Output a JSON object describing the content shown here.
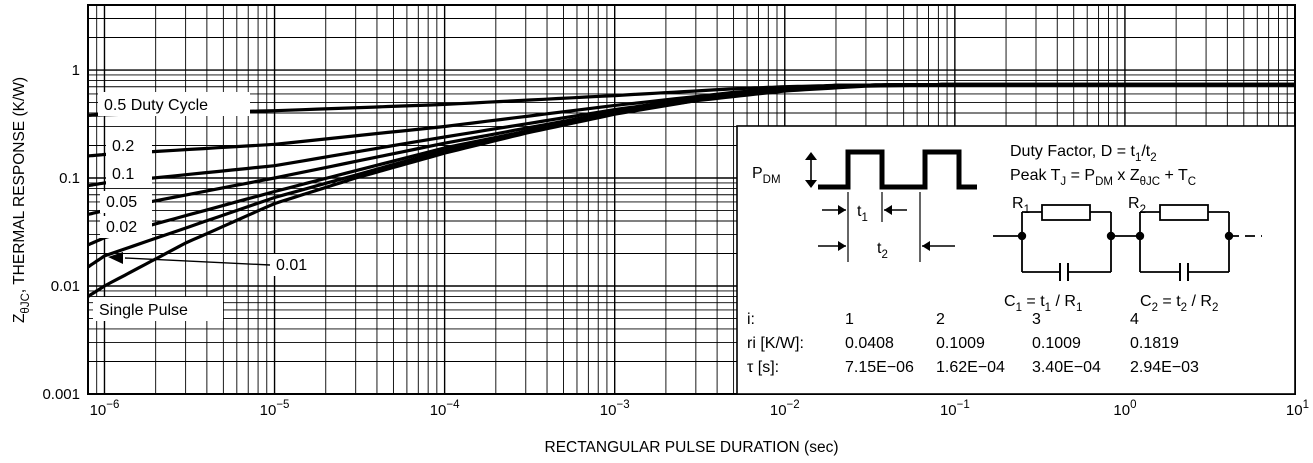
{
  "chart_data": {
    "type": "line",
    "title": "",
    "xlabel": "RECTANGULAR PULSE DURATION (sec)",
    "ylabel": {
      "main": "Z",
      "sub": "θJC",
      "rest": ", THERMAL RESPONSE (K/W)"
    },
    "x_scale": "log",
    "y_scale": "log",
    "xlim": [
      8e-07,
      10
    ],
    "ylim": [
      0.001,
      4
    ],
    "grid": true,
    "x_ticks": [
      {
        "value": 1e-06,
        "base": "10",
        "exp": "−6"
      },
      {
        "value": 1e-05,
        "base": "10",
        "exp": "−5"
      },
      {
        "value": 0.0001,
        "base": "10",
        "exp": "−4"
      },
      {
        "value": 0.001,
        "base": "10",
        "exp": "−3"
      },
      {
        "value": 0.01,
        "base": "10",
        "exp": "−2"
      },
      {
        "value": 0.1,
        "base": "10",
        "exp": "−1"
      },
      {
        "value": 1,
        "base": "10",
        "exp": "0"
      },
      {
        "value": 10,
        "base": "10",
        "exp": "1"
      }
    ],
    "y_ticks": [
      {
        "value": 1,
        "label": "1"
      },
      {
        "value": 0.1,
        "label": "0.1"
      },
      {
        "value": 0.01,
        "label": "0.01"
      },
      {
        "value": 0.001,
        "label": "0.001"
      }
    ],
    "series": [
      {
        "name": "0.5 Duty Cycle",
        "x": [
          8e-07,
          1e-06,
          1e-05,
          0.0001,
          0.001,
          0.005,
          0.01,
          0.02,
          0.05,
          0.1,
          1,
          10
        ],
        "y": [
          0.38,
          0.385,
          0.42,
          0.48,
          0.58,
          0.67,
          0.7,
          0.72,
          0.73,
          0.735,
          0.735,
          0.735
        ]
      },
      {
        "name": "0.2",
        "x": [
          8e-07,
          1e-06,
          1e-05,
          0.0001,
          0.001,
          0.005,
          0.01,
          0.02,
          0.05,
          0.1,
          1,
          10
        ],
        "y": [
          0.16,
          0.165,
          0.205,
          0.3,
          0.47,
          0.62,
          0.68,
          0.72,
          0.73,
          0.735,
          0.735,
          0.735
        ]
      },
      {
        "name": "0.1",
        "x": [
          8e-07,
          1e-06,
          1e-05,
          0.0001,
          0.001,
          0.005,
          0.01,
          0.02,
          0.05,
          0.1,
          1,
          10
        ],
        "y": [
          0.085,
          0.09,
          0.13,
          0.24,
          0.43,
          0.61,
          0.67,
          0.72,
          0.73,
          0.735,
          0.735,
          0.735
        ]
      },
      {
        "name": "0.05",
        "x": [
          8e-07,
          1e-06,
          1e-05,
          0.0001,
          0.001,
          0.005,
          0.01,
          0.02,
          0.05,
          0.1,
          1,
          10
        ],
        "y": [
          0.046,
          0.05,
          0.1,
          0.21,
          0.41,
          0.6,
          0.67,
          0.72,
          0.73,
          0.735,
          0.735,
          0.735
        ]
      },
      {
        "name": "0.02",
        "x": [
          8e-07,
          1e-06,
          1e-05,
          0.0001,
          0.001,
          0.005,
          0.01,
          0.02,
          0.05,
          0.1,
          1,
          10
        ],
        "y": [
          0.024,
          0.028,
          0.075,
          0.19,
          0.4,
          0.6,
          0.66,
          0.71,
          0.73,
          0.735,
          0.735,
          0.735
        ]
      },
      {
        "name": "0.01",
        "x": [
          8e-07,
          1e-06,
          1e-05,
          0.0001,
          0.001,
          0.005,
          0.01,
          0.02,
          0.05,
          0.1,
          1,
          10
        ],
        "y": [
          0.015,
          0.019,
          0.066,
          0.18,
          0.4,
          0.59,
          0.66,
          0.71,
          0.73,
          0.735,
          0.735,
          0.735
        ]
      },
      {
        "name": "Single Pulse",
        "x": [
          8e-07,
          1e-06,
          3e-06,
          1e-05,
          3e-05,
          0.0001,
          0.0003,
          0.001,
          0.003,
          0.01,
          0.03,
          0.1,
          1,
          10
        ],
        "y": [
          0.008,
          0.01,
          0.025,
          0.058,
          0.1,
          0.17,
          0.26,
          0.39,
          0.52,
          0.64,
          0.71,
          0.73,
          0.735,
          0.735
        ]
      }
    ],
    "annotations": {
      "duty_factor": {
        "text": "Duty Factor, D = t",
        "sub1": "1",
        "mid": "/t",
        "sub2": "2"
      },
      "peak": {
        "a": "Peak T",
        "sa": "J",
        "b": " = P",
        "sb": "DM",
        "c": " x Z",
        "sc": "θJC",
        "d": " + T",
        "sd": "C"
      },
      "pdm": {
        "main": "P",
        "sub": "DM"
      },
      "t1": {
        "main": "t",
        "sub": "1"
      },
      "t2": {
        "main": "t",
        "sub": "2"
      },
      "r1": {
        "main": "R",
        "sub": "1"
      },
      "r2": {
        "main": "R",
        "sub": "2"
      },
      "c1": {
        "a": "C",
        "sa": "1",
        "b": " = t",
        "sb": "1",
        "c": " / R",
        "sc": "1"
      },
      "c2": {
        "a": "C",
        "sa": "2",
        "b": " = t",
        "sb": "2",
        "c": " / R",
        "sc": "2"
      }
    },
    "table": {
      "row_headers": [
        "i:",
        "ri [K/W]:",
        "τ [s]:"
      ],
      "columns": [
        [
          "1",
          "0.0408",
          "7.15E−06"
        ],
        [
          "2",
          "0.1009",
          "1.62E−04"
        ],
        [
          "3",
          "0.1009",
          "3.40E−04"
        ],
        [
          "4",
          "0.1819",
          "2.94E−03"
        ]
      ]
    }
  }
}
